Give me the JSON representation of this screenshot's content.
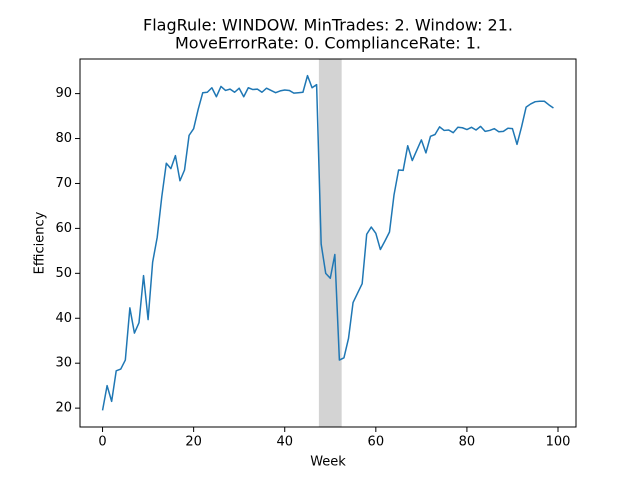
{
  "chart_data": {
    "type": "line",
    "title": [
      "FlagRule: WINDOW. MinTrades: 2. Window: 21.",
      "MoveErrorRate: 0. ComplianceRate: 1."
    ],
    "xlabel": "Week",
    "ylabel": "Efficiency",
    "x": [
      0,
      1,
      2,
      3,
      4,
      5,
      6,
      7,
      8,
      9,
      10,
      11,
      12,
      13,
      14,
      15,
      16,
      17,
      18,
      19,
      20,
      21,
      22,
      23,
      24,
      25,
      26,
      27,
      28,
      29,
      30,
      31,
      32,
      33,
      34,
      35,
      36,
      37,
      38,
      39,
      40,
      41,
      42,
      43,
      44,
      45,
      46,
      47,
      48,
      49,
      50,
      51,
      52,
      53,
      54,
      55,
      56,
      57,
      58,
      59,
      60,
      61,
      62,
      63,
      64,
      65,
      66,
      67,
      68,
      69,
      70,
      71,
      72,
      73,
      74,
      75,
      76,
      77,
      78,
      79,
      80,
      81,
      82,
      83,
      84,
      85,
      86,
      87,
      88,
      89,
      90,
      91,
      92,
      93,
      94,
      95,
      96,
      97,
      98,
      99
    ],
    "values": [
      19.5,
      25,
      21.5,
      28.3,
      28.7,
      30.7,
      42.3,
      36.7,
      39,
      49.5,
      39.7,
      52.5,
      58,
      67,
      74.5,
      73.3,
      76.2,
      70.6,
      73,
      80.7,
      82.2,
      86.5,
      90.2,
      90.3,
      91.3,
      89.3,
      91.6,
      90.7,
      91,
      90.3,
      91.2,
      89.3,
      91.3,
      90.9,
      91,
      90.3,
      91.2,
      90.7,
      90.2,
      90.6,
      90.8,
      90.7,
      90.1,
      90.2,
      90.3,
      94,
      91.3,
      92,
      56.5,
      50,
      48.9,
      54.2,
      30.7,
      31.2,
      35.5,
      43.5,
      45.6,
      47.7,
      58.7,
      60.3,
      58.9,
      55.3,
      57.2,
      59.2,
      67.5,
      73,
      72.9,
      78.4,
      75.1,
      77.4,
      79.7,
      76.8,
      80.5,
      80.9,
      82.6,
      81.8,
      81.9,
      81.3,
      82.5,
      82.4,
      82,
      82.5,
      81.9,
      82.7,
      81.6,
      81.8,
      82.2,
      81.5,
      81.6,
      82.3,
      82.2,
      78.7,
      82.6,
      87,
      87.7,
      88.2,
      88.3,
      88.3,
      87.5,
      86.8
    ],
    "color": "#1f77b4",
    "shade": [
      47.5,
      52.5
    ],
    "shade_color": "#d3d3d3",
    "xlim": [
      -4.95,
      103.95
    ],
    "xticks": [
      0,
      20,
      40,
      60,
      80,
      100
    ],
    "ylim": [
      15.8,
      97.7
    ],
    "yticks": [
      20,
      30,
      40,
      50,
      60,
      70,
      80,
      90
    ],
    "grid": false
  }
}
